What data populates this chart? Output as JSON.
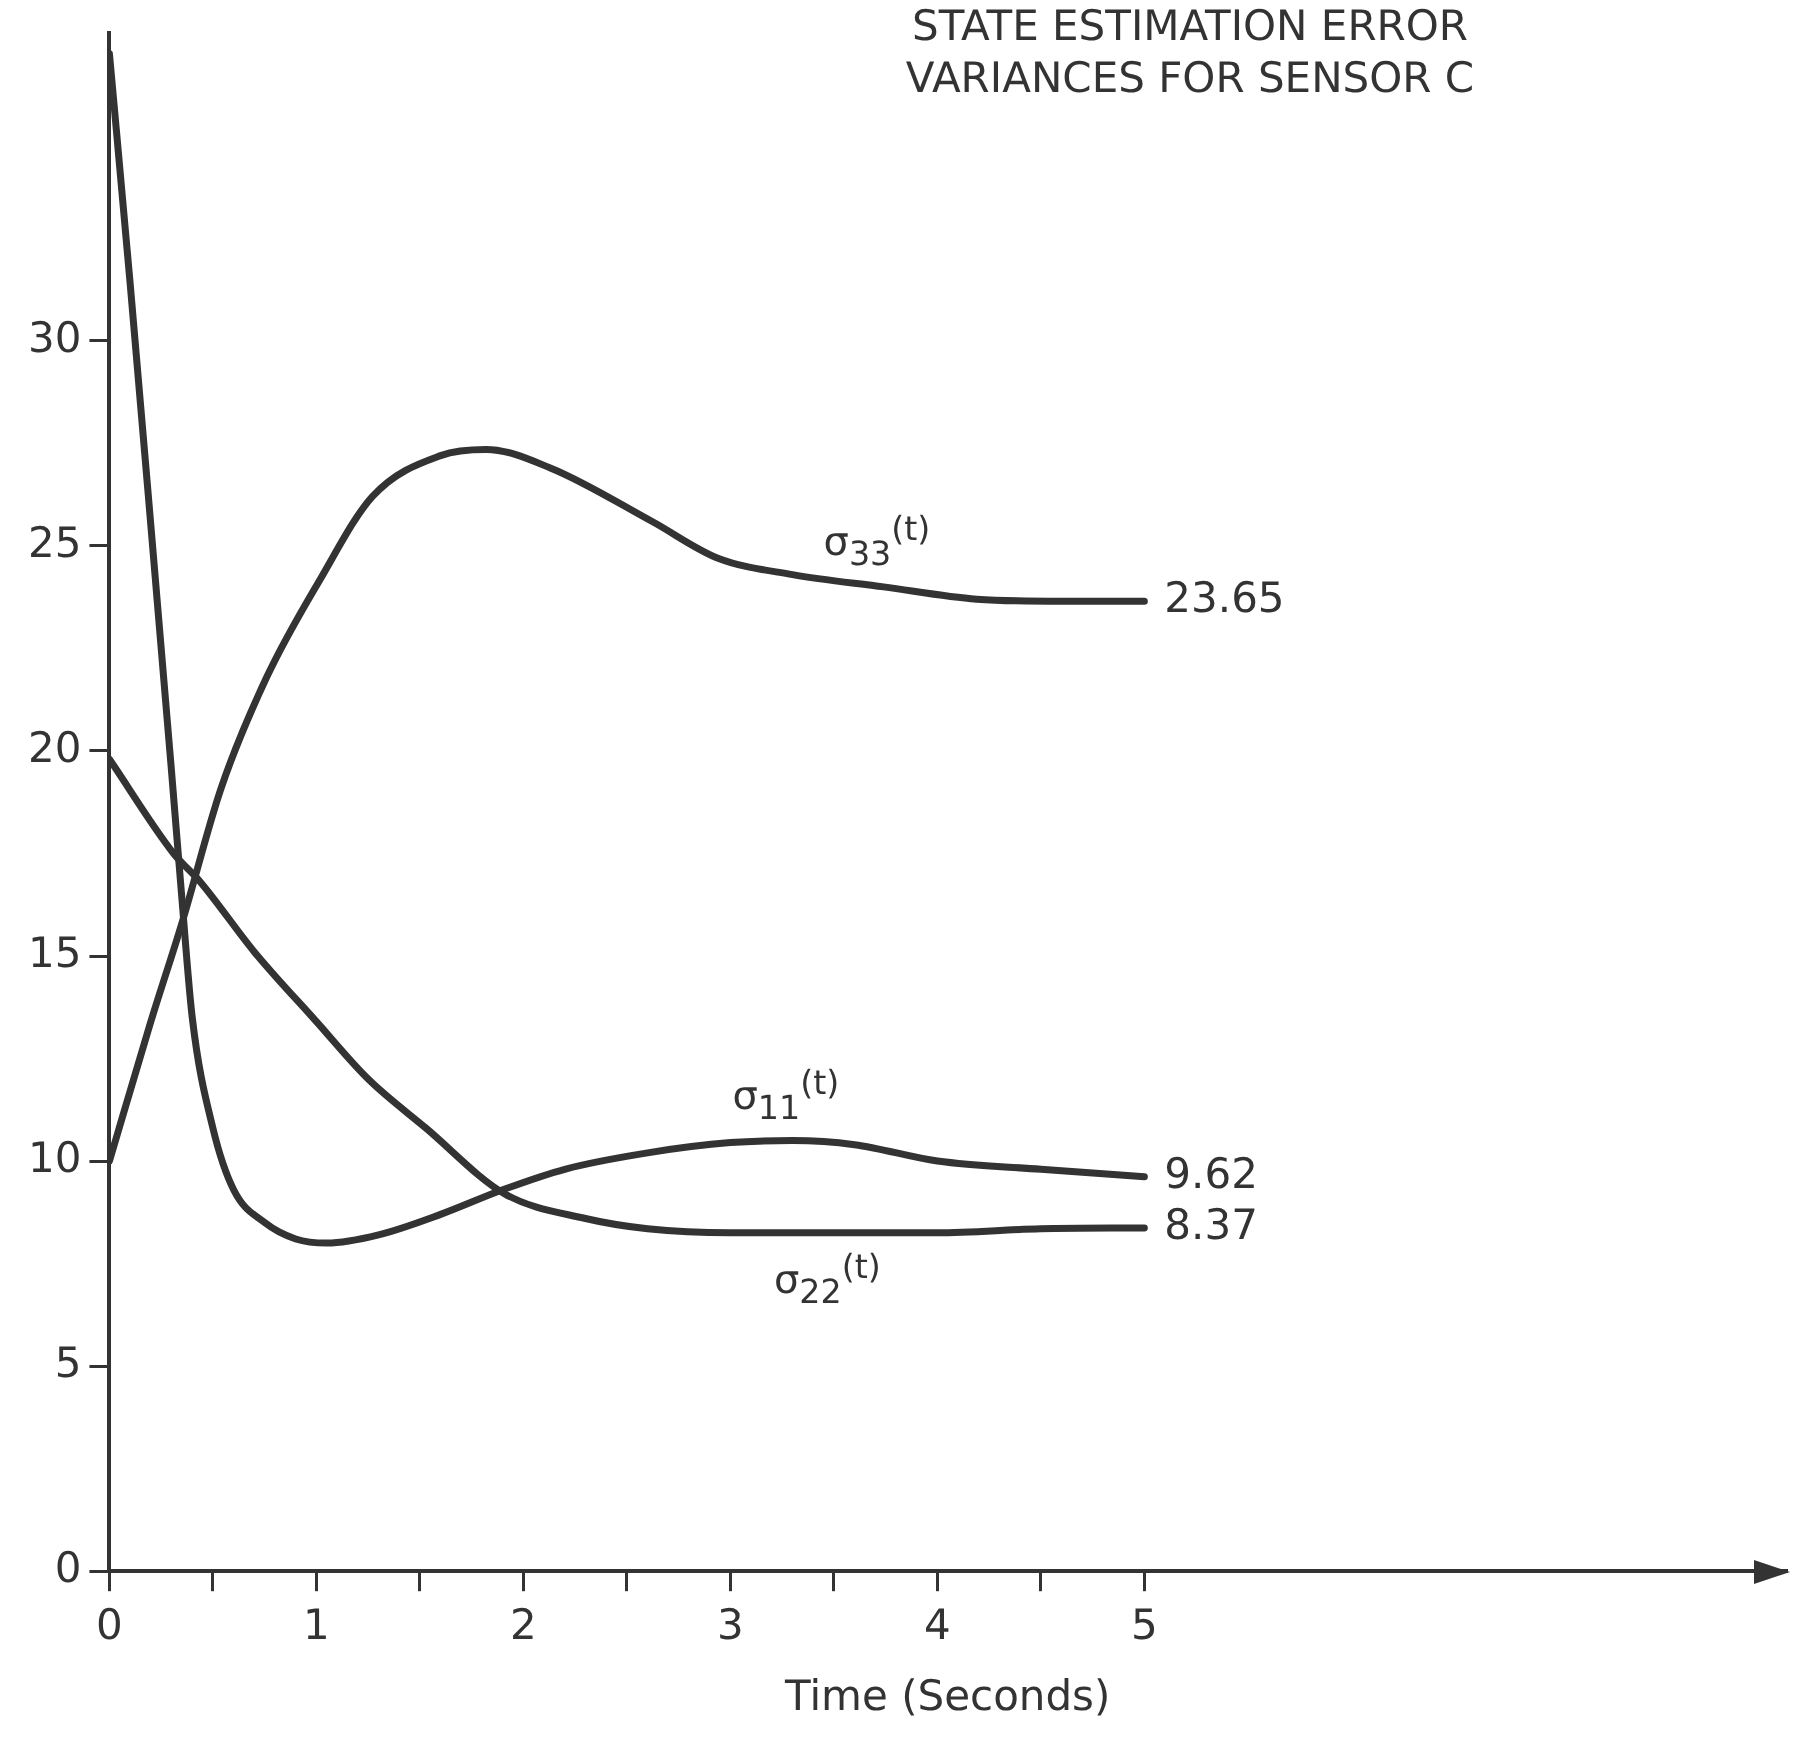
{
  "chart_data": {
    "type": "line",
    "title": "STATE ESTIMATION ERROR VARIANCES FOR SENSOR C",
    "xlabel": "Time (Seconds)",
    "xlim": [
      0,
      8.1
    ],
    "ylim": [
      0,
      37.5
    ],
    "xticks": [
      0,
      {
        "value": 0.5,
        "label": null
      },
      1,
      {
        "value": 1.5,
        "label": null
      },
      2,
      {
        "value": 2.5,
        "label": null
      },
      3,
      {
        "value": 3.5,
        "label": null
      },
      4,
      {
        "value": 4.5,
        "label": null
      },
      5
    ],
    "yticks": [
      0,
      5,
      10,
      15,
      20,
      25,
      30
    ],
    "grid": false,
    "legend": false,
    "marker": "none",
    "line_style": "solid",
    "series": [
      {
        "name": "σ$_{33}$$^{(t)}$",
        "color": "#333333",
        "x": [
          0,
          0.2,
          0.35,
          0.54,
          0.76,
          1.02,
          1.27,
          1.6,
          1.82,
          2.13,
          2.62,
          2.94,
          3.3,
          3.74,
          4.19,
          4.6,
          5
        ],
        "values": [
          10,
          13.4,
          15.8,
          19.1,
          21.8,
          24.2,
          26.2,
          27.2,
          27.35,
          26.9,
          25.6,
          24.7,
          24.3,
          24,
          23.7,
          23.65,
          23.65
        ],
        "value_labels": [
          null,
          null,
          null,
          null,
          null,
          null,
          null,
          null,
          null,
          null,
          null,
          null,
          null,
          null,
          null,
          null,
          "23.65"
        ]
      },
      {
        "name": "σ$_{11}$$^{(t)}$",
        "color": "#333333",
        "x": [
          0,
          0.1,
          0.2,
          0.3,
          0.35,
          0.4,
          0.5,
          0.6,
          0.75,
          0.9,
          1.05,
          1.3,
          1.6,
          1.9,
          2.2,
          2.6,
          3,
          3.3,
          3.6,
          4,
          4.5,
          5
        ],
        "values": [
          37,
          31.4,
          25.5,
          19.5,
          16.4,
          13.5,
          10.8,
          9.3,
          8.5,
          8.1,
          8,
          8.2,
          8.7,
          9.3,
          9.8,
          10.2,
          10.45,
          10.5,
          10.4,
          10,
          9.8,
          9.62
        ],
        "value_labels": [
          null,
          null,
          null,
          null,
          null,
          null,
          null,
          null,
          null,
          null,
          null,
          null,
          null,
          null,
          null,
          null,
          null,
          null,
          null,
          null,
          null,
          "9.62"
        ]
      },
      {
        "name": "σ$_{22}$$^{(t)}$",
        "color": "#333333",
        "x": [
          0,
          0.31,
          0.44,
          0.7,
          1,
          1.25,
          1.53,
          1.91,
          2.3,
          2.6,
          3,
          3.5,
          4,
          4.5,
          5
        ],
        "values": [
          19.8,
          17.5,
          16.8,
          15.1,
          13.4,
          12,
          10.8,
          9.2,
          8.6,
          8.35,
          8.25,
          8.25,
          8.25,
          8.35,
          8.37
        ],
        "value_labels": [
          null,
          null,
          null,
          null,
          null,
          null,
          null,
          null,
          null,
          null,
          null,
          null,
          null,
          null,
          "8.37"
        ]
      }
    ]
  }
}
